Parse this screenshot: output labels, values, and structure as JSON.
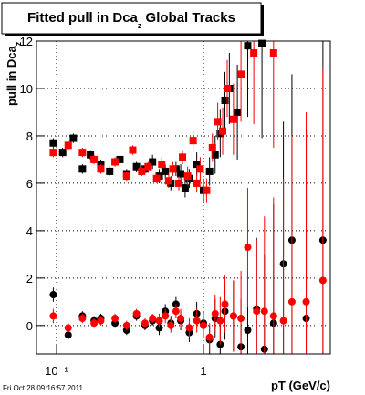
{
  "chart_data": {
    "type": "scatter",
    "title": "Fitted pull in Dca",
    "title_sub": "z",
    "title_rest": " Global Tracks",
    "y_label": "pull in Dca",
    "y_label_sub": "z",
    "x_label": "pT (GeV/c)",
    "timestamp": "Fri Oct 28 09:16:57 2011",
    "xscale": "log",
    "grid": true,
    "xlim": [
      0.073,
      7.3
    ],
    "ylim": [
      -1.2,
      12
    ],
    "xticks": [
      {
        "value": 0.1,
        "label": "10⁻¹"
      },
      1
    ],
    "yticks": [
      0,
      2,
      4,
      6,
      8,
      10,
      12
    ],
    "series": [
      {
        "marker": "square",
        "color": "#000000",
        "x": [
          0.095,
          0.11,
          0.13,
          0.15,
          0.17,
          0.2,
          0.23,
          0.27,
          0.3,
          0.35,
          0.4,
          0.45,
          0.5,
          0.55,
          0.6,
          0.65,
          0.7,
          0.75,
          0.8,
          0.9,
          1.0,
          1.1,
          1.2,
          1.3,
          1.4,
          1.5,
          1.7,
          2.0,
          2.5
        ],
        "values": [
          7.7,
          7.3,
          7.9,
          6.6,
          7.2,
          6.8,
          6.5,
          7.0,
          6.4,
          6.7,
          6.6,
          6.9,
          6.3,
          6.5,
          6.0,
          6.6,
          6.4,
          5.8,
          6.2,
          6.8,
          5.7,
          6.5,
          7.2,
          8.1,
          9.5,
          10.0,
          9.0,
          11.8,
          11.9
        ],
        "yerr": [
          0.2,
          0.2,
          0.2,
          0.2,
          0.2,
          0.2,
          0.2,
          0.2,
          0.2,
          0.2,
          0.2,
          0.3,
          0.3,
          0.3,
          0.3,
          0.3,
          0.4,
          0.4,
          0.4,
          0.5,
          0.5,
          0.6,
          0.8,
          1.0,
          1.2,
          1.5,
          2.0,
          3.0,
          4.0
        ]
      },
      {
        "marker": "square",
        "color": "#ff0000",
        "x": [
          0.095,
          0.12,
          0.15,
          0.18,
          0.2,
          0.25,
          0.3,
          0.33,
          0.38,
          0.42,
          0.48,
          0.52,
          0.58,
          0.62,
          0.68,
          0.72,
          0.78,
          0.85,
          0.9,
          0.95,
          1.05,
          1.15,
          1.25,
          1.35,
          1.45,
          1.6,
          1.8,
          2.2,
          3.0
        ],
        "values": [
          7.3,
          7.6,
          7.3,
          7.0,
          6.6,
          6.9,
          6.3,
          7.4,
          6.5,
          6.7,
          6.2,
          6.8,
          6.1,
          6.6,
          6.0,
          7.1,
          6.3,
          7.8,
          6.0,
          6.6,
          5.7,
          7.5,
          8.6,
          8.2,
          10.0,
          8.7,
          10.6,
          11.5,
          11.5
        ],
        "yerr": [
          0.2,
          0.2,
          0.2,
          0.2,
          0.2,
          0.2,
          0.2,
          0.2,
          0.2,
          0.2,
          0.2,
          0.3,
          0.3,
          0.3,
          0.3,
          0.3,
          0.4,
          0.4,
          0.4,
          0.5,
          0.5,
          0.6,
          0.8,
          1.0,
          1.2,
          1.5,
          2.0,
          3.0,
          4.0
        ]
      },
      {
        "marker": "circle",
        "color": "#000000",
        "x": [
          0.095,
          0.12,
          0.15,
          0.18,
          0.2,
          0.25,
          0.3,
          0.35,
          0.4,
          0.45,
          0.5,
          0.55,
          0.6,
          0.65,
          0.7,
          0.8,
          0.9,
          1.0,
          1.1,
          1.2,
          1.3,
          1.4,
          1.6,
          1.8,
          2.0,
          2.3,
          2.6,
          3.0,
          3.5,
          4.0,
          5.0,
          6.5
        ],
        "values": [
          1.3,
          -0.4,
          0.4,
          0.2,
          0.3,
          0.1,
          -0.2,
          0.4,
          0.0,
          0.2,
          -0.1,
          0.6,
          0.1,
          0.9,
          0.2,
          -0.3,
          0.5,
          0.1,
          -0.6,
          0.3,
          -0.8,
          0.6,
          0.4,
          -0.9,
          -0.2,
          0.7,
          -1.0,
          0.1,
          2.6,
          3.6,
          0.3,
          3.6
        ],
        "yerr": [
          0.3,
          0.2,
          0.2,
          0.2,
          0.2,
          0.2,
          0.2,
          0.2,
          0.2,
          0.2,
          0.3,
          0.3,
          0.3,
          0.3,
          0.4,
          0.4,
          0.5,
          0.5,
          0.6,
          0.8,
          1.0,
          1.2,
          1.5,
          2.0,
          2.5,
          3.0,
          4.0,
          5.0,
          6.0,
          7.0,
          8.0,
          9.0
        ]
      },
      {
        "marker": "circle",
        "color": "#ff0000",
        "x": [
          0.095,
          0.12,
          0.15,
          0.18,
          0.2,
          0.25,
          0.3,
          0.35,
          0.4,
          0.45,
          0.5,
          0.55,
          0.6,
          0.65,
          0.7,
          0.8,
          0.9,
          1.0,
          1.1,
          1.2,
          1.3,
          1.4,
          1.6,
          1.8,
          2.0,
          2.3,
          2.6,
          3.0,
          3.5,
          4.0,
          5.0,
          6.5
        ],
        "values": [
          0.4,
          -0.1,
          0.3,
          0.1,
          0.2,
          0.3,
          0.0,
          0.5,
          0.1,
          0.3,
          0.2,
          0.4,
          0.0,
          0.6,
          0.3,
          -0.1,
          0.2,
          0.0,
          -0.5,
          0.5,
          0.2,
          0.9,
          0.4,
          0.3,
          3.3,
          0.6,
          0.6,
          0.4,
          0.2,
          1.0,
          1.0,
          1.9
        ],
        "yerr": [
          0.3,
          0.2,
          0.2,
          0.2,
          0.2,
          0.2,
          0.2,
          0.2,
          0.2,
          0.2,
          0.3,
          0.3,
          0.3,
          0.3,
          0.4,
          0.4,
          0.5,
          0.5,
          0.6,
          0.8,
          1.0,
          1.2,
          1.5,
          2.0,
          2.5,
          3.0,
          4.0,
          5.0,
          6.0,
          7.0,
          8.0,
          9.0
        ]
      }
    ]
  }
}
